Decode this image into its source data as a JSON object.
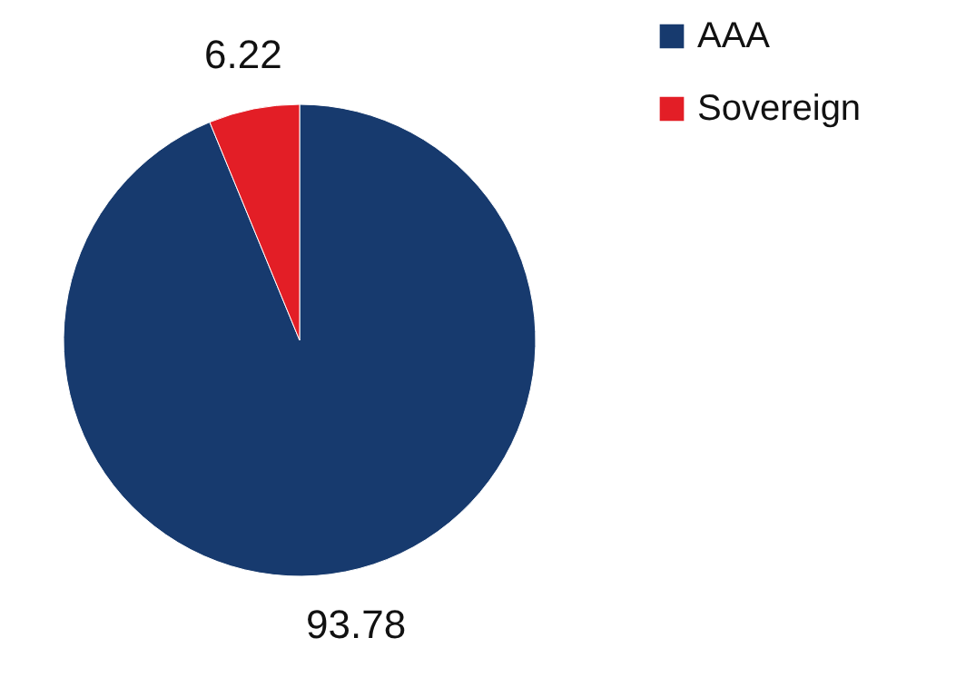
{
  "chart_data": {
    "type": "pie",
    "categories": [
      "AAA",
      "Sovereign"
    ],
    "values": [
      93.78,
      6.22
    ],
    "colors": [
      "#173a6e",
      "#e31e26"
    ],
    "data_labels": true,
    "legend": "right"
  }
}
